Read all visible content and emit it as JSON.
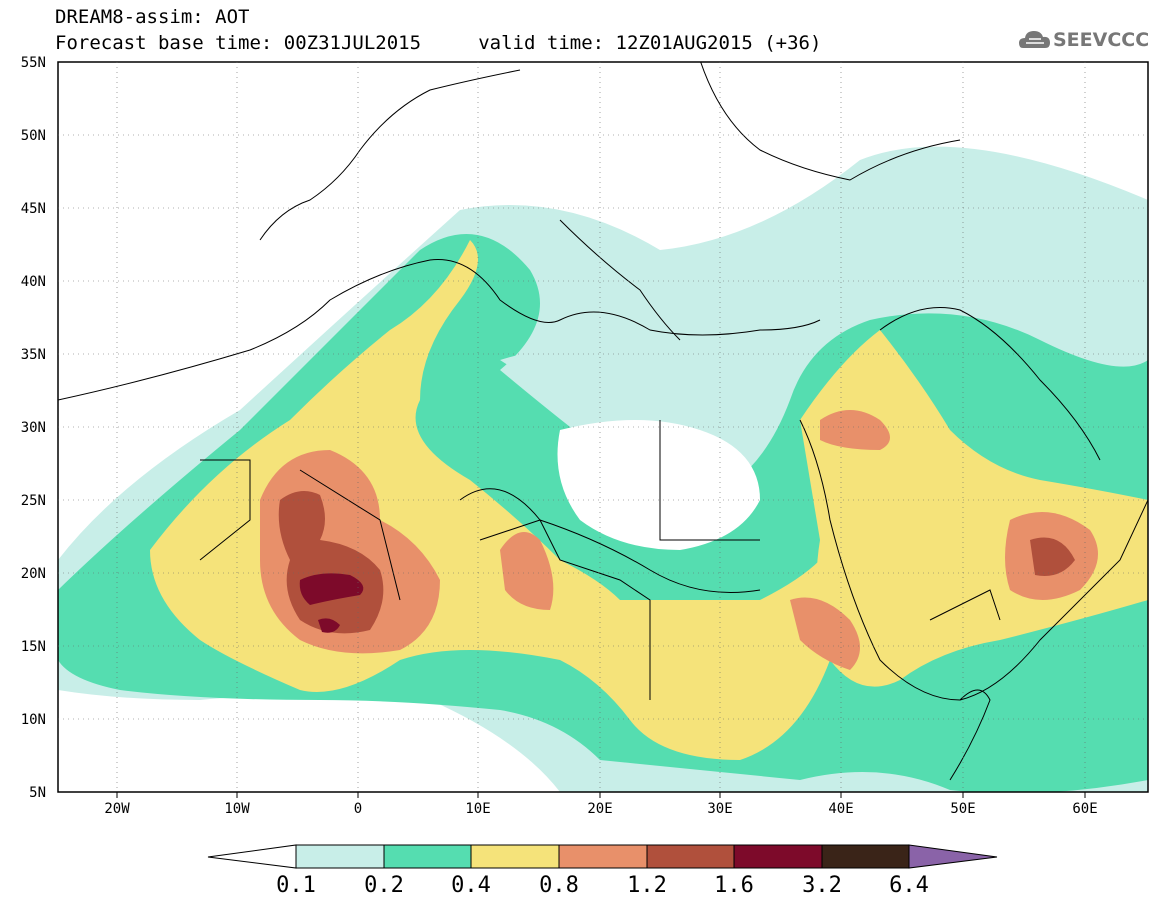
{
  "header": {
    "title": "DREAM8-assim: AOT",
    "base_time_line": "Forecast base time: 00Z31JUL2015     valid time: 12Z01AUG2015 (+36)"
  },
  "logo": {
    "text": "SEEVCCC",
    "icon": "cloud-icon"
  },
  "map": {
    "lat_labels": [
      "55N",
      "50N",
      "45N",
      "40N",
      "35N",
      "30N",
      "25N",
      "20N",
      "15N",
      "10N",
      "5N"
    ],
    "lon_labels": [
      "20W",
      "10W",
      "0",
      "10E",
      "20E",
      "30E",
      "40E",
      "50E",
      "60E"
    ]
  },
  "colorbar": {
    "labels": [
      "0.1",
      "0.2",
      "0.4",
      "0.8",
      "1.2",
      "1.6",
      "3.2",
      "6.4"
    ],
    "colors": [
      "#ffffff",
      "#c8eee8",
      "#55ddb0",
      "#f5e37a",
      "#e8906a",
      "#b0503c",
      "#7d0a2a",
      "#3a2418",
      "#8a63a8"
    ]
  },
  "palette": {
    "land_white": "#ffffff",
    "very_light": "#c8eee8",
    "light_green": "#55ddb0",
    "yellow": "#f5e37a",
    "orange": "#e8906a",
    "brown": "#b0503c",
    "maroon": "#7d0a2a"
  }
}
